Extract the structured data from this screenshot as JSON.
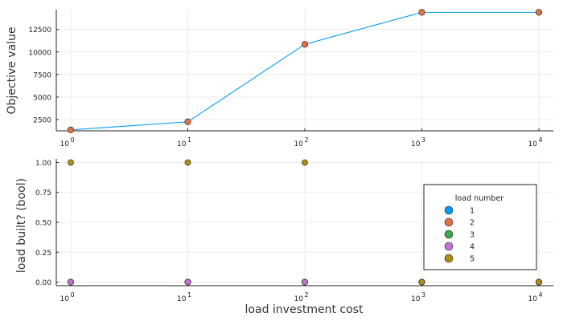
{
  "chart_data": [
    {
      "type": "line",
      "xscale": "log10",
      "xlim": [
        1,
        10000
      ],
      "xticks": [
        1,
        10,
        100,
        1000,
        10000
      ],
      "xtick_base": "10",
      "xtick_exponents": [
        "0",
        "1",
        "2",
        "3",
        "4"
      ],
      "ylabel": "Objective value",
      "xlabel": "",
      "ylim": [
        1250,
        14700
      ],
      "yticks": [
        2500,
        5000,
        7500,
        10000,
        12500
      ],
      "ytick_labels": [
        "2500",
        "5000",
        "7500",
        "10000",
        "12500"
      ],
      "grid": true,
      "line_color": "#009AFA",
      "marker_color": "#E36F47",
      "series": [
        {
          "x": [
            1,
            10,
            100,
            1000,
            10000
          ],
          "y": [
            1350,
            2250,
            10850,
            14400,
            14400
          ]
        }
      ]
    },
    {
      "type": "scatter",
      "xscale": "log10",
      "xlim": [
        1,
        10000
      ],
      "xticks": [
        1,
        10,
        100,
        1000,
        10000
      ],
      "xtick_base": "10",
      "xtick_exponents": [
        "0",
        "1",
        "2",
        "3",
        "4"
      ],
      "xlabel": "load investment cost",
      "ylabel": "load built? (bool)",
      "ylim": [
        -0.03,
        1.03
      ],
      "yticks": [
        0,
        0.25,
        0.5,
        0.75,
        1
      ],
      "ytick_labels": [
        "0.00",
        "0.25",
        "0.50",
        "0.75",
        "1.00"
      ],
      "grid": true,
      "legend": {
        "title": "load number",
        "position": "right",
        "entries": [
          {
            "label": "1",
            "color": "#009AFA"
          },
          {
            "label": "2",
            "color": "#E36F47"
          },
          {
            "label": "3",
            "color": "#3EA44E"
          },
          {
            "label": "4",
            "color": "#C371D2"
          },
          {
            "label": "5",
            "color": "#AC8E18"
          }
        ]
      },
      "series": [
        {
          "name": "1",
          "color": "#009AFA",
          "x": [
            1,
            10,
            100,
            1000,
            10000
          ],
          "y": [
            0,
            0,
            0,
            0,
            0
          ]
        },
        {
          "name": "2",
          "color": "#E36F47",
          "x": [
            1,
            10,
            100,
            1000,
            10000
          ],
          "y": [
            0,
            0,
            0,
            0,
            0
          ]
        },
        {
          "name": "3",
          "color": "#3EA44E",
          "x": [
            1,
            10,
            100,
            1000,
            10000
          ],
          "y": [
            0,
            0,
            0,
            0,
            0
          ]
        },
        {
          "name": "4",
          "color": "#C371D2",
          "x": [
            1,
            10,
            100,
            1000,
            10000
          ],
          "y": [
            0,
            0,
            0,
            0,
            0
          ]
        },
        {
          "name": "5",
          "color": "#AC8E18",
          "x": [
            1,
            10,
            100,
            1000,
            10000
          ],
          "y": [
            1,
            1,
            1,
            0,
            0
          ]
        }
      ]
    }
  ]
}
